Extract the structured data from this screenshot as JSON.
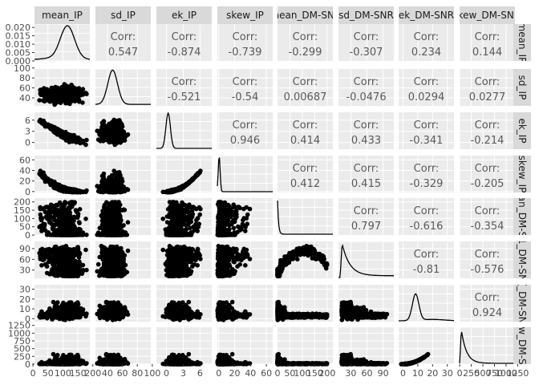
{
  "chart_data": {
    "type": "scatter",
    "subtype": "pairs-matrix",
    "variables": [
      "mean_IP",
      "sd_IP",
      "ek_IP",
      "skew_IP",
      "mean_DM-SNR",
      "sd_DM-SNR",
      "ek_DM-SNR",
      "skew_DM-SNR"
    ],
    "top_strip_labels": [
      "mean_IP",
      "sd_IP",
      "ek_IP",
      "skew_IP",
      "nean_DM-SNI",
      "sd_DM-SNR",
      "ek_DM-SNR",
      "kew_DM-SNI"
    ],
    "right_strip_labels": [
      "mean_IP",
      "sd_IP",
      "ek_IP",
      "skew_IP",
      "an_DM-S",
      "1_DM-SN",
      "(_DM-SN",
      "w_DM-S"
    ],
    "corr_label": "Corr:",
    "correlations": [
      {
        "row": 0,
        "col": 1,
        "value": "0.547"
      },
      {
        "row": 0,
        "col": 2,
        "value": "-0.874"
      },
      {
        "row": 0,
        "col": 3,
        "value": "-0.739"
      },
      {
        "row": 0,
        "col": 4,
        "value": "-0.299"
      },
      {
        "row": 0,
        "col": 5,
        "value": "-0.307"
      },
      {
        "row": 0,
        "col": 6,
        "value": "0.234"
      },
      {
        "row": 0,
        "col": 7,
        "value": "0.144"
      },
      {
        "row": 1,
        "col": 2,
        "value": "-0.521"
      },
      {
        "row": 1,
        "col": 3,
        "value": "-0.54"
      },
      {
        "row": 1,
        "col": 4,
        "value": "0.00687"
      },
      {
        "row": 1,
        "col": 5,
        "value": "-0.0476"
      },
      {
        "row": 1,
        "col": 6,
        "value": "0.0294"
      },
      {
        "row": 1,
        "col": 7,
        "value": "0.0277"
      },
      {
        "row": 2,
        "col": 3,
        "value": "0.946"
      },
      {
        "row": 2,
        "col": 4,
        "value": "0.414"
      },
      {
        "row": 2,
        "col": 5,
        "value": "0.433"
      },
      {
        "row": 2,
        "col": 6,
        "value": "-0.341"
      },
      {
        "row": 2,
        "col": 7,
        "value": "-0.214"
      },
      {
        "row": 3,
        "col": 4,
        "value": "0.412"
      },
      {
        "row": 3,
        "col": 5,
        "value": "0.415"
      },
      {
        "row": 3,
        "col": 6,
        "value": "-0.329"
      },
      {
        "row": 3,
        "col": 7,
        "value": "-0.205"
      },
      {
        "row": 4,
        "col": 5,
        "value": "0.797"
      },
      {
        "row": 4,
        "col": 6,
        "value": "-0.616"
      },
      {
        "row": 4,
        "col": 7,
        "value": "-0.354"
      },
      {
        "row": 5,
        "col": 6,
        "value": "-0.81"
      },
      {
        "row": 5,
        "col": 7,
        "value": "-0.576"
      },
      {
        "row": 6,
        "col": 7,
        "value": "0.924"
      }
    ],
    "y_tick_labels": [
      [
        "0.020",
        "0.015",
        "0.010",
        "0.005",
        "0.000"
      ],
      [
        "100",
        "80",
        "60",
        "40"
      ],
      [
        "6",
        "3",
        "0"
      ],
      [
        "60",
        "40",
        "20",
        "0"
      ],
      [
        "200",
        "150",
        "100",
        "50",
        "0"
      ],
      [
        "90",
        "60",
        "30"
      ],
      [
        "30",
        "20",
        "10",
        "0"
      ],
      [
        "1250",
        "1000",
        "750",
        "500",
        "250",
        "0"
      ]
    ],
    "x_tick_labels": [
      [
        "0",
        "50",
        "100",
        "150",
        "200"
      ],
      [
        "40",
        "60",
        "80",
        "100"
      ],
      [
        "0",
        "3",
        "6"
      ],
      [
        "0",
        "20",
        "40",
        "60"
      ],
      [
        "0",
        "50",
        "100",
        "150",
        "200"
      ],
      [
        "30",
        "60",
        "90"
      ],
      [
        "0",
        "10",
        "20",
        "30"
      ],
      [
        "0",
        "250",
        "500",
        "750",
        "1000",
        "1250"
      ]
    ],
    "ranges": [
      [
        5,
        190
      ],
      [
        24,
        98
      ],
      [
        -1.8,
        8.1
      ],
      [
        -1.8,
        68
      ],
      [
        0.2,
        223
      ],
      [
        7,
        110
      ],
      [
        -3,
        34.5
      ],
      [
        -1.9,
        1191
      ]
    ],
    "diag_density_ylim": [
      0,
      0.022
    ],
    "colors": {
      "panel_background": "#ebebeb",
      "grid": "#ffffff",
      "strip_background": "#d9d9d9",
      "points": "#000000",
      "corr_text": "#595959"
    }
  }
}
